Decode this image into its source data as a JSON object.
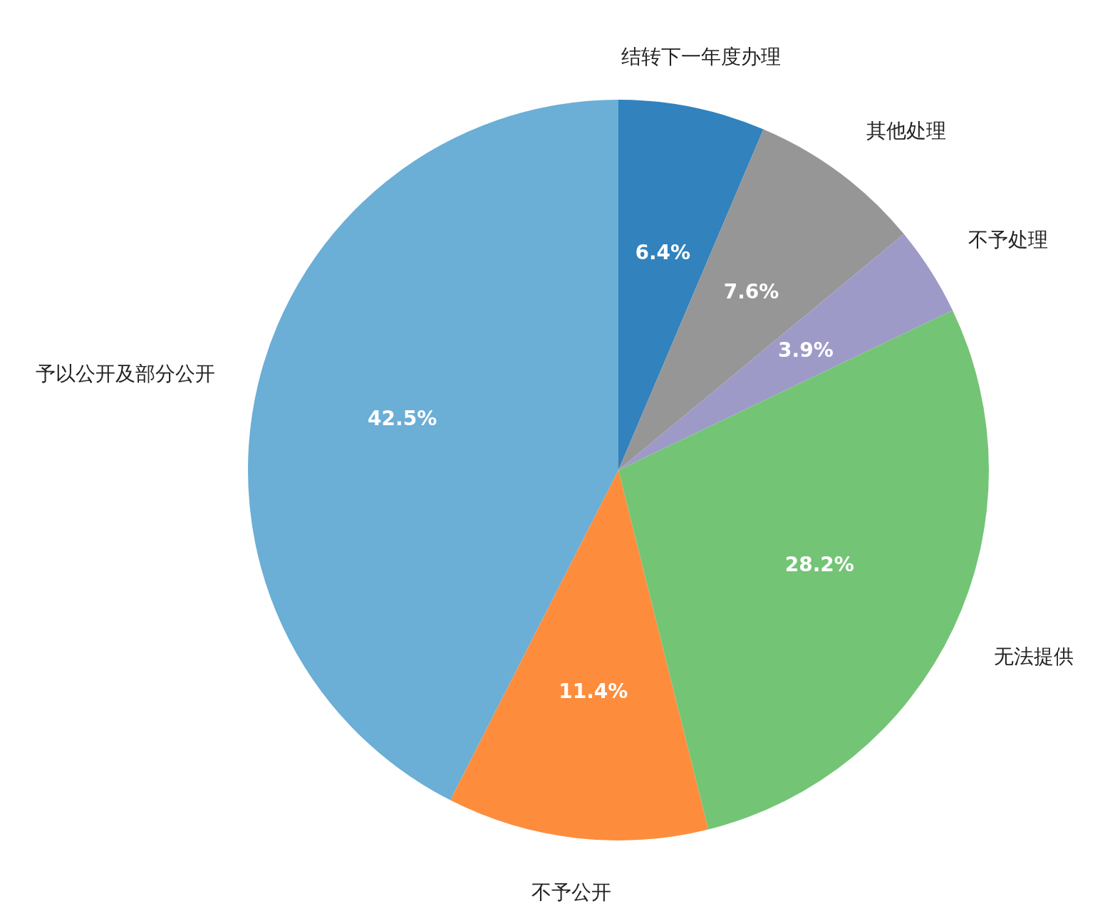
{
  "chart_data": {
    "type": "pie",
    "categories": [
      "结转下一年度办理",
      "其他处理",
      "不予处理",
      "无法提供",
      "不予公开",
      "予以公开及部分公开"
    ],
    "values": [
      6.4,
      7.6,
      3.9,
      28.2,
      11.4,
      42.5
    ],
    "colors": [
      "#3182bd",
      "#969696",
      "#9e9ac8",
      "#74c476",
      "#fd8d3c",
      "#6baed6"
    ],
    "value_labels": [
      "6.4%",
      "7.6%",
      "3.9%",
      "28.2%",
      "11.4%",
      "42.5%"
    ]
  }
}
